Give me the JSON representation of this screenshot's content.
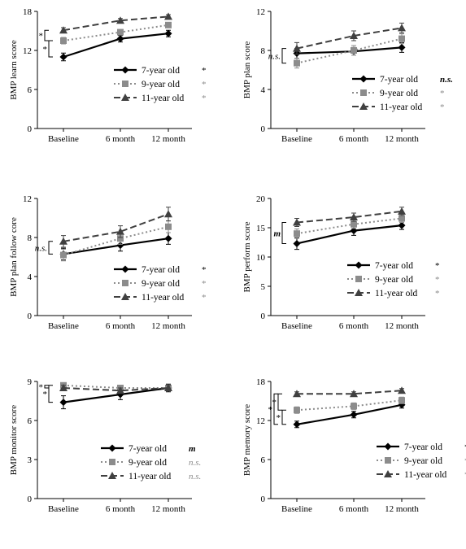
{
  "chart_data": [
    {
      "type": "line",
      "ylabel": "BMP learn score",
      "categories": [
        "Baseline",
        "6 month",
        "12 month"
      ],
      "ylim": [
        0,
        18
      ],
      "yticks": [
        0,
        6,
        12,
        18
      ],
      "baseline_sig": [
        "*",
        "*"
      ],
      "series": [
        {
          "name": "7-year old",
          "sig": "*",
          "values": [
            11.0,
            13.8,
            14.6
          ],
          "err": [
            0.6,
            0.5,
            0.5
          ]
        },
        {
          "name": "9-year old",
          "sig": "*",
          "values": [
            13.5,
            14.8,
            15.9
          ],
          "err": [
            0.5,
            0.4,
            0.4
          ]
        },
        {
          "name": "11-year old",
          "sig": "*",
          "values": [
            15.1,
            16.6,
            17.2
          ],
          "err": [
            0.4,
            0.3,
            0.3
          ]
        }
      ]
    },
    {
      "type": "line",
      "ylabel": "BMP  plan score",
      "categories": [
        "Baseline",
        "6 month",
        "12 month"
      ],
      "ylim": [
        0,
        12
      ],
      "yticks": [
        0,
        4,
        8,
        12
      ],
      "baseline_sig": [
        "n.s."
      ],
      "series": [
        {
          "name": "7-year old",
          "sig": "n.s.",
          "values": [
            7.7,
            7.9,
            8.3
          ],
          "err": [
            0.5,
            0.4,
            0.5
          ]
        },
        {
          "name": "9-year old",
          "sig": "*",
          "values": [
            6.7,
            8.0,
            9.2
          ],
          "err": [
            0.5,
            0.5,
            0.5
          ]
        },
        {
          "name": "11-year old",
          "sig": "*",
          "values": [
            8.2,
            9.5,
            10.3
          ],
          "err": [
            0.6,
            0.5,
            0.5
          ]
        }
      ]
    },
    {
      "type": "line",
      "ylabel": "BMP  plan  follow core",
      "categories": [
        "Baseline",
        "6 month",
        "12 month"
      ],
      "ylim": [
        0,
        12
      ],
      "yticks": [
        0,
        4,
        8,
        12
      ],
      "baseline_sig": [
        "n.s."
      ],
      "series": [
        {
          "name": "7-year old",
          "sig": "*",
          "values": [
            6.3,
            7.2,
            7.9
          ],
          "err": [
            0.6,
            0.6,
            0.6
          ]
        },
        {
          "name": "9-year old",
          "sig": "*",
          "values": [
            6.2,
            7.9,
            9.1
          ],
          "err": [
            0.6,
            0.6,
            0.6
          ]
        },
        {
          "name": "11-year old",
          "sig": "*",
          "values": [
            7.6,
            8.6,
            10.4
          ],
          "err": [
            0.6,
            0.6,
            0.7
          ]
        }
      ]
    },
    {
      "type": "line",
      "ylabel": "BMP perform score",
      "categories": [
        "Baseline",
        "6 month",
        "12 month"
      ],
      "ylim": [
        0,
        20
      ],
      "yticks": [
        0,
        5,
        10,
        15,
        20
      ],
      "baseline_sig": [
        "m"
      ],
      "series": [
        {
          "name": "7-year old",
          "sig": "*",
          "values": [
            12.3,
            14.5,
            15.4
          ],
          "err": [
            1.0,
            0.8,
            0.7
          ]
        },
        {
          "name": "9-year old",
          "sig": "*",
          "values": [
            14.0,
            15.6,
            16.6
          ],
          "err": [
            0.8,
            0.7,
            0.7
          ]
        },
        {
          "name": "11-year old",
          "sig": "*",
          "values": [
            15.9,
            16.8,
            17.8
          ],
          "err": [
            0.7,
            0.7,
            0.7
          ]
        }
      ]
    },
    {
      "type": "line",
      "ylabel": "BMP  monitor score",
      "categories": [
        "Baseline",
        "6 month",
        "12 month"
      ],
      "ylim": [
        0,
        9
      ],
      "yticks": [
        0,
        3,
        6,
        9
      ],
      "baseline_sig": [
        "*",
        "*"
      ],
      "series": [
        {
          "name": "7-year old",
          "sig": "m",
          "values": [
            7.4,
            8.0,
            8.5
          ],
          "err": [
            0.5,
            0.4,
            0.3
          ]
        },
        {
          "name": "9-year old",
          "sig": "n.s.",
          "values": [
            8.7,
            8.5,
            8.5
          ],
          "err": [
            0.2,
            0.2,
            0.2
          ]
        },
        {
          "name": "11-year old",
          "sig": "n.s.",
          "values": [
            8.5,
            8.3,
            8.5
          ],
          "err": [
            0.2,
            0.2,
            0.2
          ]
        }
      ]
    },
    {
      "type": "line",
      "ylabel": "BMP memory score",
      "categories": [
        "Baseline",
        "6 month",
        "12 month"
      ],
      "ylim": [
        0,
        18
      ],
      "yticks": [
        0,
        6,
        12,
        18
      ],
      "baseline_sig": [
        "*",
        "*",
        "*"
      ],
      "series": [
        {
          "name": "7-year old",
          "sig": "*",
          "values": [
            11.4,
            12.9,
            14.4
          ],
          "err": [
            0.5,
            0.5,
            0.5
          ]
        },
        {
          "name": "9-year old",
          "sig": "*",
          "values": [
            13.6,
            14.2,
            15.1
          ],
          "err": [
            0.5,
            0.5,
            0.5
          ]
        },
        {
          "name": "11-year old",
          "sig": "*",
          "values": [
            16.1,
            16.1,
            16.6
          ],
          "err": [
            0.3,
            0.3,
            0.3
          ]
        }
      ]
    }
  ],
  "style": {
    "series_colors": [
      "#000000",
      "#8c8c8c",
      "#404040"
    ],
    "sig_colors": [
      "#000000",
      "#8c8c8c",
      "#8c8c8c"
    ],
    "axis_color": "#000000"
  }
}
